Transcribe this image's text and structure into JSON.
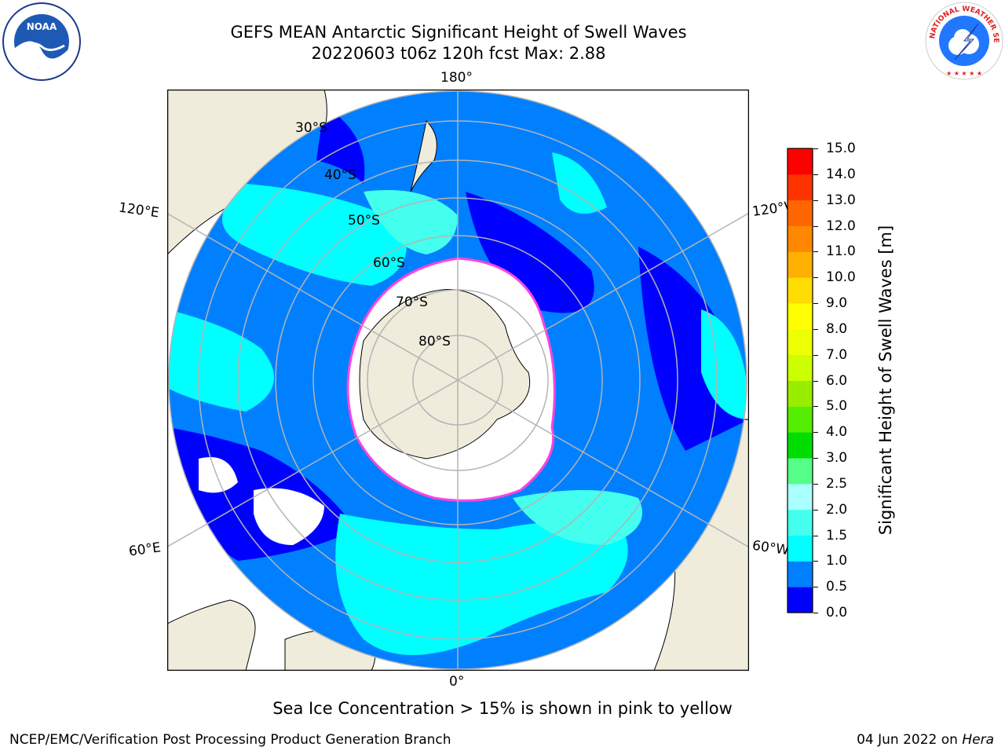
{
  "header": {
    "title_line1": "GEFS MEAN Antarctic Significant Height of Swell Waves",
    "title_line2": "20220603 t06z 120h fcst   Max: 2.88"
  },
  "map": {
    "projection": "south polar stereographic",
    "longitude_labels": {
      "top": "180°",
      "bottom": "0°",
      "upper_left": "120°E",
      "upper_right": "120°W",
      "lower_left": "60°E",
      "lower_right": "60°W"
    },
    "latitude_labels": [
      "30°S",
      "40°S",
      "50°S",
      "60°S",
      "70°S",
      "80°S"
    ],
    "colors": {
      "land": "#efecdc",
      "sea_ice": "#ffffff",
      "ice_edge": "#ff44dd",
      "ocean_0_05": "#0000ff",
      "ocean_05_1": "#0080ff",
      "ocean_1_15": "#00ffff",
      "ocean_15_2": "#44ffee"
    }
  },
  "colorbar": {
    "label": "Significant Height of Swell Waves [m]",
    "ticks": [
      "0.0",
      "0.5",
      "1.0",
      "1.5",
      "2.0",
      "2.5",
      "3.0",
      "4.0",
      "5.0",
      "6.0",
      "7.0",
      "8.0",
      "9.0",
      "10.0",
      "11.0",
      "12.0",
      "13.0",
      "14.0",
      "15.0"
    ],
    "colors": [
      "#0000ff",
      "#0080ff",
      "#00ffff",
      "#44ffee",
      "#aaffff",
      "#55ff88",
      "#00dd00",
      "#55ee00",
      "#99ee00",
      "#ccff00",
      "#eeff00",
      "#ffff00",
      "#ffdd00",
      "#ffb000",
      "#ff8800",
      "#ff6600",
      "#ff3300",
      "#ff0000"
    ]
  },
  "note": "Sea Ice Concentration > 15% is shown in pink to yellow",
  "footer": {
    "left": "NCEP/EMC/Verification Post Processing Product Generation Branch",
    "right_prefix": "04 Jun 2022 on ",
    "right_italic": "Hera"
  },
  "logos": {
    "noaa_text": "NOAA",
    "nws_text": "NATIONAL WEATHER SERVICE"
  }
}
